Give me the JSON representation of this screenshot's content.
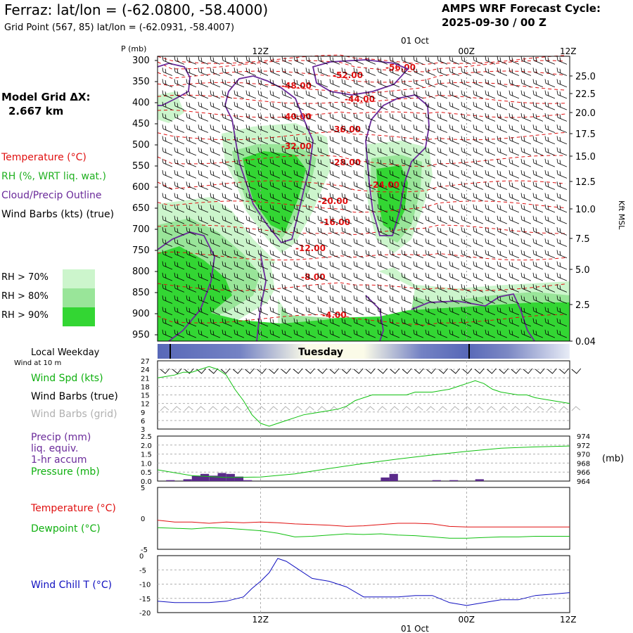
{
  "header": {
    "title": "Ferraz:  lat/lon = (-62.0800, -58.4000)",
    "grid_point": "Grid Point (567, 85) lat/lon = (-62.0931, -58.4007)",
    "cycle_line1": "AMPS WRF Forecast Cycle:",
    "cycle_line2": "2025-09-30 / 00  Z"
  },
  "sidebar": {
    "model_grid_line1": "Model Grid ΔX:",
    "model_grid_line2": "2.667 km",
    "legend": [
      {
        "label": "Temperature (°C)",
        "color": "#e01010"
      },
      {
        "label": "RH (%, WRT liq. wat.)",
        "color": "#20b020"
      },
      {
        "label": "Cloud/Precip Outline",
        "color": "#6a2a9a"
      },
      {
        "label": "Wind Barbs (kts) (true)",
        "color": "#000000"
      }
    ],
    "rh_legend": [
      {
        "label": "RH > 70%",
        "color": "#ccf5cc"
      },
      {
        "label": "RH > 80%",
        "color": "#99e599"
      },
      {
        "label": "RH > 90%",
        "color": "#33d633"
      }
    ]
  },
  "colors": {
    "temperature": "#e01010",
    "dewpoint": "#10c010",
    "rh": "#20b020",
    "cloud": "#6a2a9a",
    "precip_bar": "#5a2a8a",
    "windchill": "#1010c0",
    "grid_barbs": "#b0b0b0",
    "weekday_band": "#6070c0"
  },
  "chart_data": [
    {
      "type": "heatmap",
      "title": "Time-height cross section",
      "ylabel": "P (mb)",
      "y_ticks": [
        "300",
        "350",
        "400",
        "450",
        "500",
        "550",
        "600",
        "650",
        "700",
        "750",
        "800",
        "850",
        "900",
        "950"
      ],
      "ylim": [
        950,
        300
      ],
      "right_ylabel": "Kft MSL",
      "right_ticks": [
        "25.0",
        "22.5",
        "20.0",
        "17.5",
        "15.0",
        "12.5",
        "10.0",
        "7.5",
        "5.0",
        "2.5",
        "0.04"
      ],
      "top_date": "01 Oct",
      "x_ticks": [
        "12Z",
        "00Z",
        "12Z"
      ],
      "temperature_contours": [
        "-56.00",
        "-52.00",
        "-48.00",
        "-44.00",
        "-40.00",
        "-36.00",
        "-32.00",
        "-28.00",
        "-24.00",
        "-20.00",
        "-16.00",
        "-12.00",
        "-8.00",
        "-4.00"
      ]
    },
    {
      "type": "line",
      "title": "Wind at 10 m",
      "band_label": "Local Weekday",
      "weekday": "Tuesday",
      "x_ticks": [
        "12Z",
        "00Z",
        "12Z"
      ],
      "y_ticks": [
        "27",
        "24",
        "21",
        "18",
        "15",
        "12",
        "9",
        "6",
        "3"
      ],
      "ylim": [
        3,
        27
      ],
      "legend": [
        "Wind Spd (kts)",
        "Wind Barbs (true)",
        "Wind Barbs (grid)"
      ],
      "series": [
        {
          "name": "Wind Spd (kts)",
          "x": [
            0,
            1,
            2,
            3,
            4,
            5,
            6,
            7,
            8,
            9,
            10,
            11,
            12,
            13,
            14,
            15,
            16,
            17,
            18,
            19,
            20,
            21,
            22,
            23,
            24,
            25,
            26,
            27,
            28,
            29,
            30,
            31,
            32,
            33,
            34,
            35,
            36,
            37,
            38,
            39,
            40,
            41,
            42,
            43,
            44,
            45,
            46,
            47,
            48
          ],
          "values": [
            21,
            21.5,
            22,
            23,
            23,
            24,
            25,
            24,
            22,
            17,
            13,
            8,
            5,
            4,
            5,
            6,
            7,
            8,
            8.5,
            9,
            9.5,
            10,
            11,
            13,
            14,
            15,
            15,
            15,
            15,
            15,
            16,
            16,
            16,
            16.5,
            17,
            18,
            19,
            20,
            19,
            17,
            16,
            15.5,
            15,
            15,
            14,
            13.5,
            13,
            12.5,
            12
          ]
        }
      ]
    },
    {
      "type": "bar",
      "title": "Precip and Pressure",
      "x_ticks": [
        "12Z",
        "00Z",
        "12Z"
      ],
      "y_ticks": [
        "2.5",
        "2.0",
        "1.5",
        "1.0",
        "0.5",
        "0.0"
      ],
      "ylim": [
        0,
        2.5
      ],
      "right_ticks": [
        "974",
        "972",
        "970",
        "968",
        "966",
        "964"
      ],
      "right_ylim": [
        964,
        974
      ],
      "right_unit": "(mb)",
      "legend": [
        "Precip (mm)",
        "liq. equiv.",
        "1-hr accum",
        "Pressure (mb)"
      ],
      "series": [
        {
          "name": "Precip (mm)",
          "x": [
            0,
            1,
            2,
            3,
            4,
            5,
            6,
            7,
            8,
            9,
            10,
            11,
            12,
            13,
            14,
            15,
            16,
            17,
            18,
            19,
            20,
            21,
            22,
            23,
            24,
            25,
            26,
            27,
            28,
            29,
            30,
            31,
            32,
            33,
            34,
            35,
            36,
            37,
            38,
            39,
            40,
            41,
            42,
            43,
            44,
            45,
            46,
            47
          ],
          "values": [
            0,
            0.05,
            0,
            0.1,
            0.3,
            0.4,
            0.3,
            0.45,
            0.4,
            0.25,
            0.05,
            0,
            0,
            0,
            0,
            0,
            0,
            0,
            0,
            0,
            0,
            0,
            0,
            0,
            0,
            0,
            0.2,
            0.4,
            0,
            0,
            0,
            0,
            0.05,
            0,
            0.05,
            0,
            0,
            0.1,
            0,
            0,
            0,
            0,
            0,
            0,
            0,
            0,
            0,
            0
          ]
        },
        {
          "name": "Pressure (mb)",
          "x": [
            0,
            4,
            8,
            12,
            16,
            20,
            24,
            28,
            32,
            36,
            40,
            44,
            48
          ],
          "values": [
            966.5,
            965.2,
            964.8,
            964.9,
            965.6,
            966.8,
            967.9,
            968.9,
            969.8,
            970.6,
            971.3,
            971.6,
            971.8
          ]
        }
      ]
    },
    {
      "type": "line",
      "title": "Temperature and Dewpoint",
      "x_ticks": [
        "12Z",
        "00Z",
        "12Z"
      ],
      "y_ticks": [
        "5",
        "0",
        "-5"
      ],
      "ylim": [
        -5,
        5
      ],
      "legend": [
        "Temperature (°C)",
        "Dewpoint (°C)"
      ],
      "series": [
        {
          "name": "Temperature (°C)",
          "x": [
            0,
            2,
            4,
            6,
            8,
            10,
            12,
            14,
            16,
            18,
            20,
            22,
            24,
            26,
            28,
            30,
            32,
            34,
            36,
            38,
            40,
            42,
            44,
            46,
            48
          ],
          "values": [
            -0.3,
            -0.6,
            -0.6,
            -0.8,
            -0.6,
            -0.7,
            -0.6,
            -0.7,
            -0.9,
            -1.0,
            -1.1,
            -1.3,
            -1.2,
            -1.0,
            -0.8,
            -0.8,
            -0.9,
            -1.3,
            -1.4,
            -1.4,
            -1.4,
            -1.4,
            -1.4,
            -1.4,
            -1.4
          ]
        },
        {
          "name": "Dewpoint (°C)",
          "x": [
            0,
            2,
            4,
            6,
            8,
            10,
            12,
            14,
            16,
            18,
            20,
            22,
            24,
            26,
            28,
            30,
            32,
            34,
            36,
            38,
            40,
            42,
            44,
            46,
            48
          ],
          "values": [
            -1.5,
            -1.6,
            -1.7,
            -1.5,
            -1.6,
            -1.8,
            -2.0,
            -2.4,
            -3.0,
            -2.9,
            -2.7,
            -2.5,
            -2.6,
            -2.5,
            -2.7,
            -2.8,
            -3.0,
            -3.2,
            -3.2,
            -3.1,
            -3.0,
            -3.0,
            -2.9,
            -2.9,
            -2.9
          ]
        }
      ]
    },
    {
      "type": "line",
      "title": "Wind Chill",
      "x_ticks": [
        "12Z",
        "00Z",
        "12Z"
      ],
      "bottom_date": "01 Oct",
      "y_ticks": [
        "0",
        "-5",
        "-10",
        "-15",
        "-20"
      ],
      "ylim": [
        -20,
        0
      ],
      "legend": [
        "Wind Chill T (°C)"
      ],
      "series": [
        {
          "name": "Wind Chill T (°C)",
          "x": [
            0,
            2,
            4,
            6,
            8,
            10,
            11,
            12,
            13,
            14,
            15,
            16,
            18,
            20,
            22,
            24,
            26,
            28,
            30,
            32,
            34,
            36,
            38,
            40,
            42,
            44,
            46,
            48
          ],
          "values": [
            -16,
            -16.5,
            -16.5,
            -16.5,
            -16,
            -14.5,
            -11.5,
            -9,
            -6,
            -1,
            -2,
            -4,
            -8,
            -9,
            -11,
            -14.5,
            -14.5,
            -14.5,
            -14,
            -14,
            -16.5,
            -17.5,
            -16.5,
            -15.5,
            -15.5,
            -14,
            -13.5,
            -13
          ]
        }
      ]
    }
  ]
}
